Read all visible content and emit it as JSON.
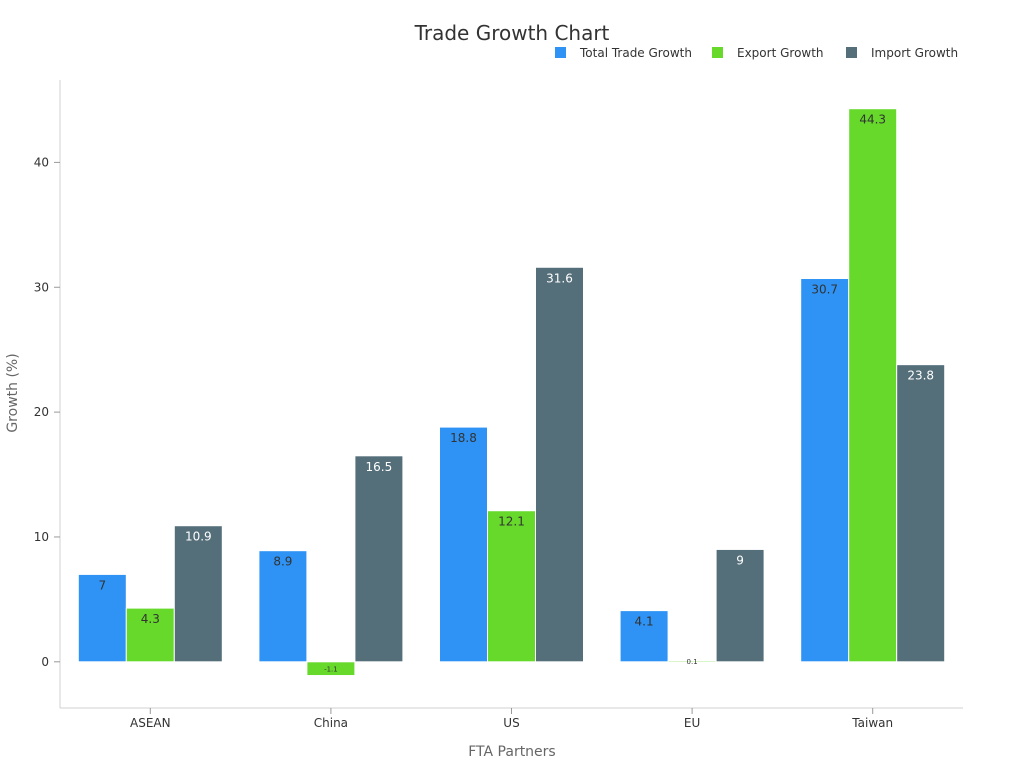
{
  "chart_data": {
    "type": "bar",
    "title": "Trade Growth Chart",
    "xlabel": "FTA Partners",
    "ylabel": "Growth (%)",
    "categories": [
      "ASEAN",
      "China",
      "US",
      "EU",
      "Taiwan"
    ],
    "series": [
      {
        "name": "Total Trade Growth",
        "color": "#2e93f5",
        "values": [
          7,
          8.9,
          18.8,
          4.1,
          30.7
        ],
        "labels": [
          "7",
          "8.9",
          "18.8",
          "4.1",
          "30.7"
        ]
      },
      {
        "name": "Export Growth",
        "color": "#66d92a",
        "values": [
          4.3,
          -1.1,
          12.1,
          0.1,
          44.3
        ],
        "labels": [
          "4.3",
          "-1.1",
          "12.1",
          "0.1",
          "44.3"
        ]
      },
      {
        "name": "Import Growth",
        "color": "#546e7a",
        "values": [
          10.9,
          16.5,
          31.6,
          9,
          23.8
        ],
        "labels": [
          "10.9",
          "16.5",
          "31.6",
          "9",
          "23.8"
        ]
      }
    ],
    "ylim": [
      -3.7,
      46.6
    ],
    "yticks": [
      0,
      10,
      20,
      30,
      40
    ],
    "grid": false,
    "legend_position": "top-right"
  }
}
